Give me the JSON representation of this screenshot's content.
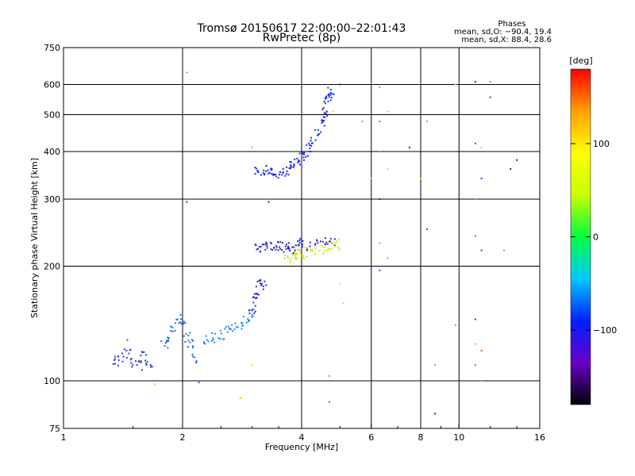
{
  "chart_data": {
    "type": "scatter",
    "title": "Tromsø 20150617 22:00:00–22:01:43",
    "subtitle": "RwPretec (8p)",
    "xlabel": "Frequency [MHz]",
    "ylabel": "Stationary phase Virtual Height [km]",
    "x_scale": "log",
    "y_scale": "log",
    "xlim": [
      1,
      16
    ],
    "ylim": [
      75,
      750
    ],
    "x_ticks": [
      1,
      2,
      4,
      6,
      8,
      10,
      16
    ],
    "x_ticklabels": [
      "1",
      "2",
      "4",
      "6",
      "8",
      "10",
      "16"
    ],
    "y_ticks": [
      75,
      100,
      200,
      300,
      400,
      500,
      600,
      750
    ],
    "y_ticklabels": [
      "75",
      "100",
      "200",
      "300",
      "400",
      "500",
      "600",
      "750"
    ],
    "grid": true,
    "legend": {
      "title": "Phases",
      "lines": [
        "mean, sd,O: −90.4, 19.4",
        "mean, sd,X:  88.4, 28.6"
      ],
      "position": "top-right"
    },
    "colorbar": {
      "label": "[deg]",
      "range": [
        -180,
        180
      ],
      "ticks": [
        100,
        0,
        -100
      ],
      "ticklabels": [
        "100",
        "0",
        "−100"
      ],
      "colors": [
        "#000000",
        "#6a00c8",
        "#0020ff",
        "#00c8ff",
        "#00ff40",
        "#c8ff00",
        "#ffff00",
        "#ffa000",
        "#ff0000"
      ]
    },
    "clusters": [
      {
        "name": "F2 trace",
        "color": "#1a2aff",
        "points": [
          [
            3.1,
            355
          ],
          [
            3.2,
            357
          ],
          [
            3.3,
            356
          ],
          [
            3.4,
            352
          ],
          [
            3.5,
            350
          ],
          [
            3.6,
            353
          ],
          [
            3.7,
            358
          ],
          [
            3.8,
            365
          ],
          [
            3.9,
            375
          ],
          [
            4.0,
            388
          ],
          [
            4.1,
            398
          ],
          [
            4.2,
            410
          ],
          [
            4.3,
            425
          ],
          [
            4.4,
            445
          ],
          [
            4.5,
            470
          ],
          [
            4.55,
            495
          ],
          [
            4.6,
            520
          ],
          [
            4.65,
            545
          ],
          [
            4.7,
            565
          ],
          [
            4.75,
            580
          ]
        ]
      },
      {
        "name": "F1 trace",
        "color": "#2b2bd8",
        "points": [
          [
            3.1,
            225
          ],
          [
            3.2,
            222
          ],
          [
            3.3,
            228
          ],
          [
            3.4,
            223
          ],
          [
            3.5,
            226
          ],
          [
            3.6,
            224
          ],
          [
            3.7,
            228
          ],
          [
            3.8,
            222
          ],
          [
            3.9,
            227
          ],
          [
            4.0,
            230
          ],
          [
            4.2,
            225
          ],
          [
            4.4,
            230
          ],
          [
            4.6,
            232
          ],
          [
            4.8,
            233
          ]
        ]
      },
      {
        "name": "F1 yellow",
        "color": "#d4e600",
        "points": [
          [
            3.7,
            210
          ],
          [
            3.8,
            212
          ],
          [
            3.9,
            214
          ],
          [
            4.0,
            215
          ],
          [
            4.1,
            218
          ],
          [
            4.3,
            220
          ],
          [
            4.5,
            222
          ],
          [
            4.7,
            225
          ],
          [
            4.9,
            228
          ]
        ]
      },
      {
        "name": "E trace 1",
        "color": "#1e6bff",
        "points": [
          [
            1.8,
            125
          ],
          [
            1.85,
            130
          ],
          [
            1.9,
            138
          ],
          [
            1.95,
            145
          ],
          [
            2.0,
            140
          ],
          [
            2.05,
            130
          ],
          [
            2.1,
            125
          ],
          [
            2.15,
            115
          ]
        ]
      },
      {
        "name": "E trace 2",
        "color": "#1e8cff",
        "points": [
          [
            2.3,
            128
          ],
          [
            2.4,
            130
          ],
          [
            2.5,
            132
          ],
          [
            2.6,
            135
          ],
          [
            2.7,
            138
          ],
          [
            2.8,
            140
          ],
          [
            2.9,
            145
          ],
          [
            3.0,
            150
          ]
        ]
      },
      {
        "name": "E spread",
        "color": "#3030c8",
        "points": [
          [
            3.0,
            155
          ],
          [
            3.05,
            165
          ],
          [
            3.1,
            172
          ],
          [
            3.15,
            178
          ],
          [
            3.2,
            180
          ]
        ]
      },
      {
        "name": "low points",
        "color": "#2a40d0",
        "points": [
          [
            1.35,
            113
          ],
          [
            1.4,
            115
          ],
          [
            1.45,
            118
          ],
          [
            1.5,
            112
          ],
          [
            1.55,
            110
          ],
          [
            1.6,
            116
          ],
          [
            1.65,
            112
          ]
        ]
      }
    ],
    "scatter_points": [
      {
        "x": 6.3,
        "y": 590,
        "color": "#ff8000"
      },
      {
        "x": 6.3,
        "y": 480,
        "color": "#ff6000"
      },
      {
        "x": 6.6,
        "y": 510,
        "color": "#ffd000"
      },
      {
        "x": 7.5,
        "y": 410,
        "color": "#3020b0"
      },
      {
        "x": 8.3,
        "y": 480,
        "color": "#30c0ff"
      },
      {
        "x": 9.8,
        "y": 600,
        "color": "#ffd000"
      },
      {
        "x": 11.0,
        "y": 610,
        "color": "#3020b0"
      },
      {
        "x": 11.0,
        "y": 420,
        "color": "#ff2000"
      },
      {
        "x": 11.4,
        "y": 410,
        "color": "#ffd000"
      },
      {
        "x": 12.0,
        "y": 610,
        "color": "#30a0ff"
      },
      {
        "x": 12.0,
        "y": 555,
        "color": "#3040ff"
      },
      {
        "x": 13.5,
        "y": 360,
        "color": "#3020b0"
      },
      {
        "x": 14.0,
        "y": 380,
        "color": "#3020b0"
      },
      {
        "x": 6.0,
        "y": 340,
        "color": "#ffb000"
      },
      {
        "x": 6.3,
        "y": 300,
        "color": "#3020b0"
      },
      {
        "x": 6.6,
        "y": 360,
        "color": "#ffd000"
      },
      {
        "x": 8.0,
        "y": 340,
        "color": "#ffd000"
      },
      {
        "x": 11.0,
        "y": 300,
        "color": "#30c0ff"
      },
      {
        "x": 11.4,
        "y": 340,
        "color": "#3040ff"
      },
      {
        "x": 11.0,
        "y": 240,
        "color": "#ff6000"
      },
      {
        "x": 11.4,
        "y": 220,
        "color": "#3040ff"
      },
      {
        "x": 13.0,
        "y": 220,
        "color": "#30c0ff"
      },
      {
        "x": 6.3,
        "y": 230,
        "color": "#30c0ff"
      },
      {
        "x": 6.6,
        "y": 210,
        "color": "#30c0ff"
      },
      {
        "x": 8.3,
        "y": 250,
        "color": "#3040ff"
      },
      {
        "x": 6.3,
        "y": 195,
        "color": "#3040ff"
      },
      {
        "x": 5.0,
        "y": 180,
        "color": "#ffd000"
      },
      {
        "x": 5.1,
        "y": 160,
        "color": "#ffd000"
      },
      {
        "x": 9.8,
        "y": 140,
        "color": "#30c0ff"
      },
      {
        "x": 11.0,
        "y": 145,
        "color": "#3040ff"
      },
      {
        "x": 11.0,
        "y": 125,
        "color": "#ffb000"
      },
      {
        "x": 11.4,
        "y": 120,
        "color": "#ff6000"
      },
      {
        "x": 8.7,
        "y": 110,
        "color": "#ff8000"
      },
      {
        "x": 11.0,
        "y": 110,
        "color": "#ff6000"
      },
      {
        "x": 11.4,
        "y": 100,
        "color": "#30c0ff"
      },
      {
        "x": 8.7,
        "y": 82,
        "color": "#3020b0"
      },
      {
        "x": 4.7,
        "y": 88,
        "color": "#ff4000"
      },
      {
        "x": 4.7,
        "y": 103,
        "color": "#ff8000"
      },
      {
        "x": 2.8,
        "y": 90,
        "color": "#ffb000"
      },
      {
        "x": 1.7,
        "y": 98,
        "color": "#80ff40"
      },
      {
        "x": 2.05,
        "y": 645,
        "color": "#30c0ff"
      },
      {
        "x": 2.05,
        "y": 295,
        "color": "#404040"
      },
      {
        "x": 3.0,
        "y": 410,
        "color": "#ffb000"
      },
      {
        "x": 3.3,
        "y": 295,
        "color": "#3020b0"
      },
      {
        "x": 4.8,
        "y": 510,
        "color": "#ffd000"
      },
      {
        "x": 5.0,
        "y": 600,
        "color": "#3020b0"
      },
      {
        "x": 5.7,
        "y": 480,
        "color": "#30c0ff"
      },
      {
        "x": 6.3,
        "y": 400,
        "color": "#30c0ff"
      },
      {
        "x": 3.0,
        "y": 110,
        "color": "#ffd000"
      },
      {
        "x": 2.2,
        "y": 99,
        "color": "#3040ff"
      },
      {
        "x": 1.45,
        "y": 128,
        "color": "#3040ff"
      }
    ]
  }
}
